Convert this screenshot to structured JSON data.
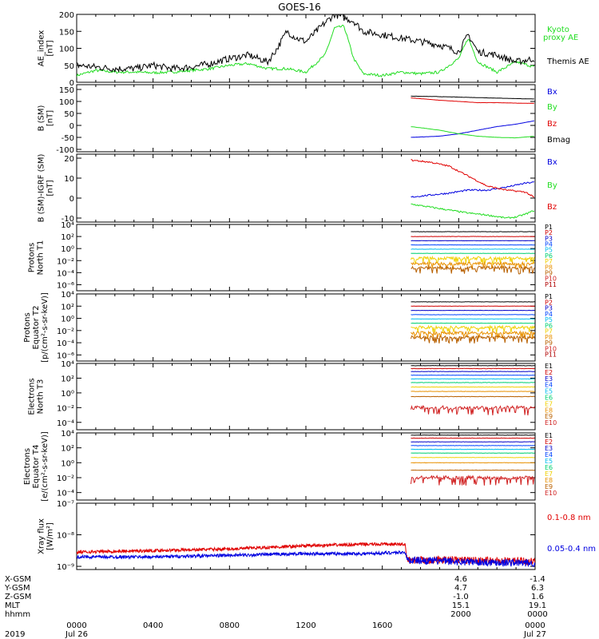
{
  "title": "GOES-16",
  "colors": {
    "black": "#000000",
    "red": "#e00000",
    "green": "#22dd22",
    "blue": "#0000e0",
    "channels": [
      "#000000",
      "#d00000",
      "#0000c8",
      "#0044ff",
      "#00bbee",
      "#00d070",
      "#f0d000",
      "#e89000",
      "#b86000",
      "#d02020",
      "#b00000"
    ]
  },
  "bottom_axis": {
    "tick_labels": [
      "0000",
      "0400",
      "0800",
      "1200",
      "1600",
      "2000",
      "0000"
    ],
    "date_labels": [
      "Jul 26",
      "Jul 27"
    ],
    "year": "2019",
    "rows": [
      {
        "label": "X-GSM",
        "left": "4.6",
        "right": "-1.4"
      },
      {
        "label": "Y-GSM",
        "left": "4.7",
        "right": "6.3"
      },
      {
        "label": "Z-GSM",
        "left": "-1.0",
        "right": "1.6"
      },
      {
        "label": "MLT",
        "left": "15.1",
        "right": "19.1"
      },
      {
        "label": "hhmm",
        "left": "2000",
        "right": "0000"
      }
    ]
  },
  "chart_data": [
    {
      "id": "ae",
      "type": "line",
      "ylabel": "AE_index [nT]",
      "yticks": [
        "200",
        "150",
        "100",
        "50",
        "0"
      ],
      "ylim": [
        0,
        200
      ],
      "series": [
        {
          "name": "Kyoto proxy AE",
          "color": "#22dd22",
          "x": [
            0,
            1,
            2,
            3,
            4,
            5,
            6,
            7,
            8,
            9,
            10,
            11,
            12,
            13,
            13.5,
            14,
            14.5,
            15,
            16,
            17,
            18,
            19,
            20,
            20.5,
            21,
            22,
            23,
            24
          ],
          "y": [
            20,
            35,
            30,
            30,
            28,
            30,
            35,
            40,
            50,
            55,
            40,
            40,
            30,
            80,
            160,
            165,
            70,
            25,
            20,
            30,
            25,
            30,
            70,
            130,
            60,
            30,
            60,
            45
          ]
        },
        {
          "name": "Themis AE",
          "color": "#000000",
          "x": [
            0,
            1,
            2,
            3,
            4,
            5,
            6,
            7,
            8,
            9,
            10,
            10.5,
            11,
            11.5,
            12,
            13,
            13.5,
            14,
            14.5,
            15,
            16,
            17,
            18,
            19,
            20,
            20.5,
            21,
            22,
            23,
            24
          ],
          "y": [
            50,
            45,
            40,
            40,
            50,
            40,
            45,
            55,
            70,
            80,
            60,
            100,
            150,
            130,
            120,
            175,
            200,
            190,
            180,
            150,
            140,
            130,
            120,
            110,
            90,
            140,
            90,
            80,
            60,
            70
          ]
        }
      ]
    },
    {
      "id": "bsm",
      "type": "line",
      "ylabel": "B (SM) [nT]",
      "yticks": [
        "150",
        "100",
        "50",
        "0",
        "-50",
        "-100"
      ],
      "ylim": [
        -110,
        170
      ],
      "series": [
        {
          "name": "Bx",
          "color": "#0000e0",
          "x": [
            17.5,
            19,
            20,
            21,
            22,
            23,
            24
          ],
          "y": [
            -50,
            -45,
            -35,
            -20,
            -5,
            5,
            20
          ]
        },
        {
          "name": "By",
          "color": "#22dd22",
          "x": [
            17.5,
            19,
            20,
            21,
            22,
            23,
            24
          ],
          "y": [
            -5,
            -20,
            -35,
            -45,
            -50,
            -52,
            -45
          ]
        },
        {
          "name": "Bz",
          "color": "#e00000",
          "x": [
            17.5,
            19,
            20,
            21,
            22,
            23,
            24
          ],
          "y": [
            115,
            105,
            100,
            95,
            95,
            93,
            92
          ]
        },
        {
          "name": "Bmag",
          "color": "#000000",
          "x": [
            17.5,
            19,
            20,
            21,
            22,
            23,
            24
          ],
          "y": [
            122,
            120,
            118,
            116,
            114,
            112,
            110
          ]
        }
      ]
    },
    {
      "id": "bdiff",
      "type": "line",
      "ylabel": "B (SM)-IGRF (SM) [nT]",
      "yticks": [
        "20",
        "10",
        "0",
        "-10"
      ],
      "ylim": [
        -12,
        22
      ],
      "series": [
        {
          "name": "Bx",
          "color": "#0000e0",
          "x": [
            17.5,
            18.5,
            19.5,
            20.5,
            21.5,
            22.5,
            23.5,
            24
          ],
          "y": [
            0.5,
            1.5,
            2.5,
            4,
            4,
            5.5,
            7.5,
            8
          ]
        },
        {
          "name": "By",
          "color": "#22dd22",
          "x": [
            17.5,
            18.5,
            19.5,
            20.5,
            21.5,
            22.5,
            23,
            23.5,
            24
          ],
          "y": [
            -3,
            -4.5,
            -6,
            -7.5,
            -8.5,
            -10,
            -9.5,
            -8,
            -6
          ]
        },
        {
          "name": "Bz",
          "color": "#e00000",
          "x": [
            17.5,
            18.5,
            19.5,
            20.5,
            21.5,
            22.5,
            23.5,
            24
          ],
          "y": [
            19,
            18,
            16,
            11,
            6,
            4,
            3,
            0
          ]
        }
      ]
    },
    {
      "id": "pn",
      "type": "line",
      "log": true,
      "ylabel": "Protons North T1",
      "yticks": [
        "10⁴",
        "10²",
        "10⁰",
        "10⁻²",
        "10⁻⁴",
        "10⁻⁶"
      ],
      "ylim_exp": [
        -7,
        4
      ],
      "channels": [
        "P1",
        "P2",
        "P3",
        "P4",
        "P5",
        "P6",
        "P7",
        "P8",
        "P9",
        "P10",
        "P11"
      ],
      "levels_exp": [
        2.8,
        2.0,
        1.3,
        0.6,
        -0.1,
        -0.8,
        -1.6,
        -2.5,
        -3.2,
        null,
        null
      ]
    },
    {
      "id": "pe",
      "type": "line",
      "log": true,
      "ylabel": "Protons Equator T2 [p/(cm²-s-sr-keV)]",
      "yticks": [
        "10⁴",
        "10²",
        "10⁰",
        "10⁻²",
        "10⁻⁴",
        "10⁻⁶"
      ],
      "ylim_exp": [
        -7,
        4
      ],
      "channels": [
        "P1",
        "P2",
        "P3",
        "P4",
        "P5",
        "P6",
        "P7",
        "P8",
        "P9",
        "P10",
        "P11"
      ],
      "levels_exp": [
        2.7,
        2.0,
        1.3,
        0.6,
        -0.1,
        -0.8,
        -1.5,
        -2.4,
        -3.1,
        null,
        null
      ]
    },
    {
      "id": "en",
      "type": "line",
      "log": true,
      "ylabel": "Electrons North T3",
      "yticks": [
        "10⁴",
        "10²",
        "10⁰",
        "10⁻²",
        "10⁻⁴"
      ],
      "ylim_exp": [
        -5,
        4
      ],
      "channels": [
        "E1",
        "E2",
        "E3",
        "E4",
        "E5",
        "E6",
        "E7",
        "E8",
        "E9",
        "E10"
      ],
      "levels_exp": [
        3.7,
        3.3,
        2.9,
        2.4,
        1.9,
        1.4,
        0.8,
        0.2,
        -0.5,
        -2.0
      ]
    },
    {
      "id": "ee",
      "type": "line",
      "log": true,
      "ylabel": "Electrons Equator T4 [e/(cm²-s-sr-keV)]",
      "yticks": [
        "10⁴",
        "10²",
        "10⁰",
        "10⁻²",
        "10⁻⁴"
      ],
      "ylim_exp": [
        -5,
        4
      ],
      "channels": [
        "E1",
        "E2",
        "E3",
        "E4",
        "E5",
        "E6",
        "E7",
        "E8",
        "E9",
        "E10"
      ],
      "levels_exp": [
        3.7,
        3.3,
        2.8,
        2.3,
        1.8,
        1.3,
        0.7,
        0.0,
        -1.0,
        -2.0
      ]
    },
    {
      "id": "xray",
      "type": "line",
      "log": true,
      "ylabel": "Xray flux [W/m²]",
      "yticks": [
        "10⁻⁷",
        "10⁻⁸",
        "10⁻⁹"
      ],
      "ylim_exp": [
        -9.1,
        -7
      ],
      "series": [
        {
          "name": "0.1-0.8 nm",
          "color": "#e00000",
          "x": [
            0,
            4,
            8,
            12,
            15,
            17.2,
            17.3,
            20,
            24
          ],
          "y_exp": [
            -8.55,
            -8.5,
            -8.45,
            -8.35,
            -8.3,
            -8.3,
            -8.8,
            -8.8,
            -8.85
          ]
        },
        {
          "name": "0.05-0.4 nm",
          "color": "#0000e0",
          "x": [
            0,
            4,
            8,
            12,
            15,
            17.2,
            17.3,
            20,
            24
          ],
          "y_exp": [
            -8.7,
            -8.7,
            -8.65,
            -8.6,
            -8.6,
            -8.55,
            -8.8,
            -8.85,
            -8.9
          ]
        }
      ]
    }
  ],
  "legends": {
    "ae": [
      "Kyoto",
      "proxy AE",
      "Themis AE"
    ],
    "bsm": [
      "Bx",
      "By",
      "Bz",
      "Bmag"
    ],
    "bdiff": [
      "Bx",
      "By",
      "Bz"
    ],
    "xray": [
      "0.1-0.8 nm",
      "0.05-0.4 nm"
    ]
  }
}
